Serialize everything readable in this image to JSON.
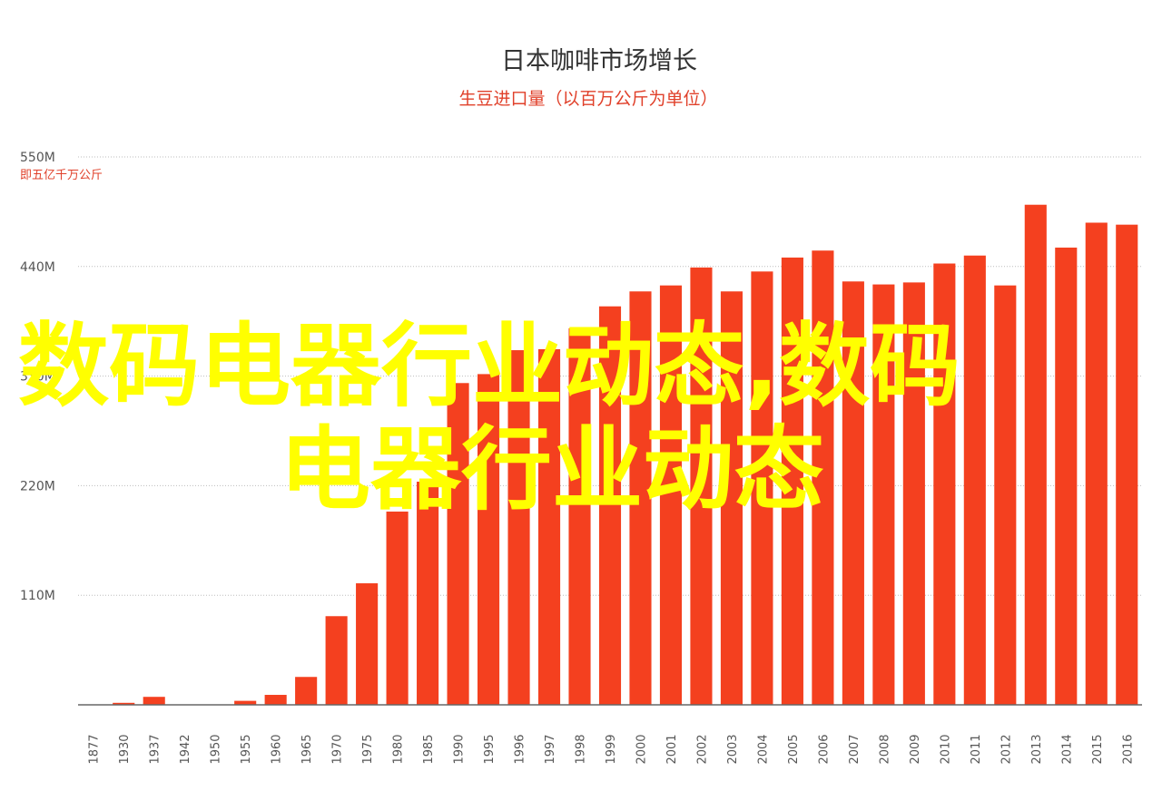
{
  "chart_data": {
    "type": "bar",
    "title": "日本咖啡市场增长",
    "subtitle": "生豆进口量（以百万公斤为单位）",
    "ylabel_unit": "即五亿千万公斤",
    "y_tick_labels": [
      "550M",
      "440M",
      "330M",
      "220M",
      "110M"
    ],
    "y_tick_values": [
      550,
      440,
      330,
      220,
      110
    ],
    "ylim": [
      0,
      550
    ],
    "grid": true,
    "legend": "none",
    "bar_color": "#f4401f",
    "categories": [
      "1877",
      "1930",
      "1937",
      "1942",
      "1950",
      "1955",
      "1960",
      "1965",
      "1970",
      "1975",
      "1980",
      "1985",
      "1990",
      "1995",
      "1996",
      "1997",
      "1998",
      "1999",
      "2000",
      "2001",
      "2002",
      "2003",
      "2004",
      "2005",
      "2006",
      "2007",
      "2008",
      "2009",
      "2010",
      "2011",
      "2012",
      "2013",
      "2014",
      "2015",
      "2016"
    ],
    "values": [
      0,
      2,
      8,
      0,
      0,
      4,
      10,
      28,
      89,
      122,
      194,
      224,
      323,
      332,
      356,
      357,
      378,
      400,
      415,
      421,
      439,
      415,
      435,
      449,
      456,
      425,
      422,
      424,
      443,
      451,
      421,
      502,
      459,
      484,
      482
    ]
  },
  "overlay": {
    "line1": "数码电器行业动态,数码",
    "line2": "电器行业动态",
    "color": "#ffff00"
  }
}
